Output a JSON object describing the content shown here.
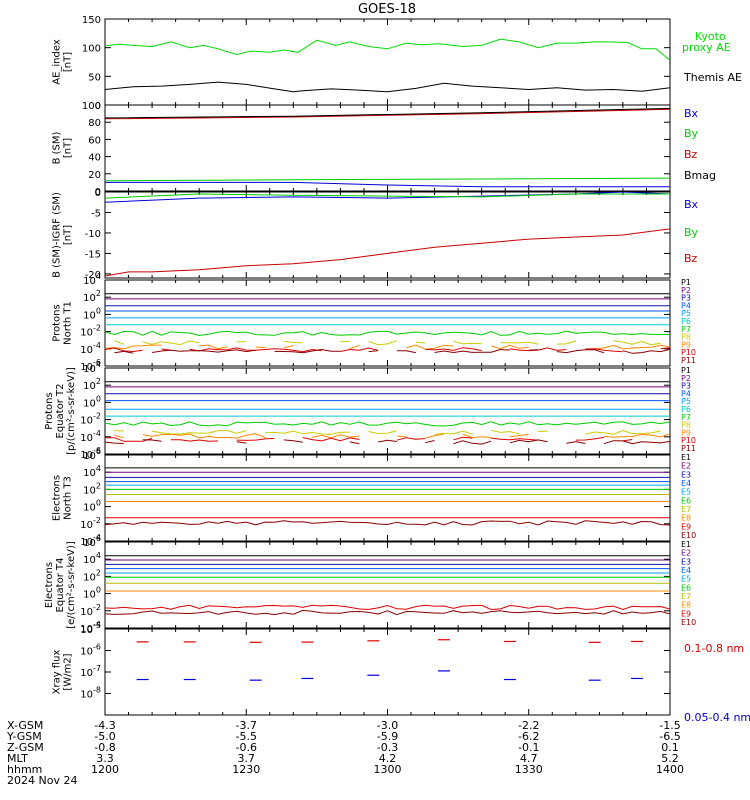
{
  "chart_data": {
    "type": "line",
    "title": "GOES-18",
    "time_axis": {
      "rows": [
        {
          "label": "X-GSM",
          "values": [
            "-4.3",
            "-3.7",
            "-3.0",
            "-2.2",
            "-1.5"
          ]
        },
        {
          "label": "Y-GSM",
          "values": [
            "-5.0",
            "-5.5",
            "-5.9",
            "-6.2",
            "-6.5"
          ]
        },
        {
          "label": "Z-GSM",
          "values": [
            "-0.8",
            "-0.6",
            "-0.3",
            "-0.1",
            "0.1"
          ]
        },
        {
          "label": "MLT",
          "values": [
            "3.3",
            "3.7",
            "4.2",
            "4.7",
            "5.2"
          ]
        },
        {
          "label": "hhmm",
          "values": [
            "1200",
            "1230",
            "1300",
            "1330",
            "1400"
          ]
        }
      ],
      "date": "2024 Nov 24",
      "xlim": [
        1200,
        1400
      ]
    },
    "panels": [
      {
        "id": "ae",
        "ylabel": [
          "AE_index",
          "[nT]"
        ],
        "ylim": [
          0,
          150
        ],
        "yticks": [
          "0",
          "50",
          "100",
          "150"
        ],
        "scale": "linear",
        "series": [
          {
            "name": "Kyoto proxy AE",
            "label_lines": [
              "Kyoto",
              "proxy AE"
            ],
            "color": "#00dd00",
            "x": [
              0,
              3,
              6,
              10,
              14,
              18,
              21,
              24,
              28,
              31,
              35,
              38,
              41,
              45,
              49,
              52,
              56,
              60,
              64,
              67,
              71,
              76,
              80,
              84,
              88,
              92,
              96,
              100,
              104,
              107,
              111,
              114,
              117,
              120
            ],
            "y": [
              103,
              106,
              104,
              102,
              110,
              100,
              104,
              98,
              88,
              94,
              92,
              96,
              92,
              113,
              104,
              110,
              102,
              98,
              108,
              105,
              107,
              102,
              104,
              115,
              110,
              100,
              108,
              108,
              110,
              110,
              109,
              98,
              98,
              78
            ]
          },
          {
            "name": "Themis AE",
            "color": "#000000",
            "x": [
              0,
              6,
              12,
              18,
              24,
              30,
              36,
              40,
              42,
              48,
              54,
              60,
              66,
              72,
              78,
              84,
              90,
              96,
              102,
              108,
              114,
              120
            ],
            "y": [
              27,
              32,
              33,
              36,
              40,
              36,
              28,
              23,
              25,
              28,
              26,
              23,
              29,
              38,
              33,
              30,
              27,
              30,
              26,
              27,
              24,
              30
            ]
          }
        ]
      },
      {
        "id": "b_sm",
        "ylabel": [
          "B (SM)",
          "[nT]"
        ],
        "ylim": [
          0,
          100
        ],
        "yticks": [
          "0",
          "20",
          "40",
          "60",
          "80",
          "100"
        ],
        "scale": "linear",
        "series": [
          {
            "name": "Bx",
            "color": "#0000dd",
            "x": [
              0,
              40,
              60,
              80,
              120
            ],
            "y": [
              10,
              10,
              7,
              5,
              5
            ]
          },
          {
            "name": "By",
            "color": "#00cc00",
            "x": [
              0,
              40,
              80,
              120
            ],
            "y": [
              12,
              13,
              14,
              15
            ]
          },
          {
            "name": "Bz",
            "color": "#cc0000",
            "x": [
              0,
              40,
              80,
              120
            ],
            "y": [
              84,
              86,
              90,
              95
            ]
          },
          {
            "name": "Bmag",
            "color": "#000000",
            "x": [
              0,
              40,
              80,
              120
            ],
            "y": [
              85,
              87,
              91,
              96
            ]
          }
        ]
      },
      {
        "id": "b_igrf",
        "ylabel": [
          "B (SM)-IGRF (SM)",
          "[nT]"
        ],
        "ylim": [
          -21,
          0
        ],
        "yticks": [
          "-20",
          "-15",
          "-10",
          "-5",
          "0"
        ],
        "scale": "linear",
        "series": [
          {
            "name": "Bx",
            "color": "#0000dd",
            "x": [
              0,
              20,
              40,
              60,
              80,
              100,
              110,
              120
            ],
            "y": [
              -2.5,
              -1.5,
              -1.2,
              -1.5,
              -1.0,
              -0.5,
              0,
              -0.5
            ]
          },
          {
            "name": "By",
            "color": "#00cc00",
            "x": [
              0,
              20,
              40,
              60,
              80,
              100,
              120
            ],
            "y": [
              -1.5,
              -0.5,
              -0.8,
              -1.0,
              -1.2,
              -0.5,
              -0.5
            ]
          },
          {
            "name": "Bz",
            "color": "#cc0000",
            "x": [
              0,
              5,
              10,
              20,
              30,
              40,
              50,
              60,
              70,
              80,
              90,
              100,
              110,
              120
            ],
            "y": [
              -20.5,
              -19.5,
              -19.5,
              -19.0,
              -18.0,
              -17.5,
              -16.5,
              -15.0,
              -13.5,
              -12.5,
              -11.5,
              -11.0,
              -10.5,
              -9.0
            ]
          }
        ]
      },
      {
        "id": "protons_t1",
        "ylabel": [
          "Protons",
          "North T1"
        ],
        "ylim_exp": [
          -6,
          4
        ],
        "yticks": [
          "10^-6",
          "10^-4",
          "10^-2",
          "10^0",
          "10^2",
          "10^4"
        ],
        "scale": "log",
        "series": [
          {
            "name": "P1",
            "color": "#000000",
            "flat": 2.4
          },
          {
            "name": "P2",
            "color": "#7a0077",
            "flat": 1.8
          },
          {
            "name": "P3",
            "color": "#1010aa",
            "flat": 1.0
          },
          {
            "name": "P4",
            "color": "#0055ff",
            "flat": 0.4
          },
          {
            "name": "P5",
            "color": "#00a0ff",
            "flat": -0.4
          },
          {
            "name": "P6",
            "color": "#00cccc",
            "flat": -1.2
          },
          {
            "name": "P7",
            "color": "#00cc00",
            "wavy": -2.2
          },
          {
            "name": "P8",
            "color": "#cccc00",
            "wavy": -3.3
          },
          {
            "name": "P9",
            "color": "#ff8800",
            "wavy": -3.8
          },
          {
            "name": "P10",
            "color": "#dd0000",
            "wavy": -4.1
          },
          {
            "name": "P11",
            "color": "#880000",
            "wavy": -4.3
          }
        ]
      },
      {
        "id": "protons_t2",
        "ylabel": [
          "Protons",
          "Equator T2",
          "[p/(cm²-s-sr-keV)]"
        ],
        "ylim_exp": [
          -6,
          4
        ],
        "yticks": [
          "10^-6",
          "10^-4",
          "10^-2",
          "10^0",
          "10^2",
          "10^4"
        ],
        "scale": "log",
        "series": [
          {
            "name": "P1",
            "color": "#000000",
            "flat": 2.4
          },
          {
            "name": "P2",
            "color": "#7a0077",
            "flat": 1.8
          },
          {
            "name": "P3",
            "color": "#1010aa",
            "flat": 1.0
          },
          {
            "name": "P4",
            "color": "#0055ff",
            "flat": 0.2
          },
          {
            "name": "P5",
            "color": "#00a0ff",
            "flat": -0.8
          },
          {
            "name": "P6",
            "color": "#00cccc",
            "flat": -1.6
          },
          {
            "name": "P7",
            "color": "#00cc00",
            "wavy": -2.5
          },
          {
            "name": "P8",
            "color": "#cccc00",
            "wavy": -3.5
          },
          {
            "name": "P9",
            "color": "#ff8800",
            "wavy": -3.9
          },
          {
            "name": "P10",
            "color": "#dd0000",
            "wavy": -4.3
          },
          {
            "name": "P11",
            "color": "#880000",
            "wavy": -4.6
          }
        ]
      },
      {
        "id": "electrons_t3",
        "ylabel": [
          "Electrons",
          "North T3"
        ],
        "ylim_exp": [
          -4,
          6
        ],
        "yticks": [
          "10^-4",
          "10^-2",
          "10^0",
          "10^2",
          "10^4",
          "10^6"
        ],
        "scale": "log",
        "series": [
          {
            "name": "E1",
            "color": "#000000",
            "flat": 4.5
          },
          {
            "name": "E2",
            "color": "#7a0077",
            "flat": 4.0
          },
          {
            "name": "E3",
            "color": "#1010aa",
            "flat": 3.4
          },
          {
            "name": "E4",
            "color": "#0055ff",
            "flat": 2.9
          },
          {
            "name": "E5",
            "color": "#00a0ff",
            "flat": 2.5
          },
          {
            "name": "E6",
            "color": "#00cc00",
            "flat": 2.0
          },
          {
            "name": "E7",
            "color": "#bbbb00",
            "flat": 1.4
          },
          {
            "name": "E8",
            "color": "#ff8800",
            "flat": 0.6
          },
          {
            "name": "E9",
            "color": "#dd0000",
            "flat": -1.3
          },
          {
            "name": "E10",
            "color": "#880000",
            "wavy": -1.9
          }
        ]
      },
      {
        "id": "electrons_t4",
        "ylabel": [
          "Electrons",
          "Equator T4",
          "[e/(cm²-s-sr-keV)]"
        ],
        "ylim_exp": [
          -4,
          6
        ],
        "yticks": [
          "10^-4",
          "10^-2",
          "10^0",
          "10^2",
          "10^4",
          "10^6"
        ],
        "scale": "log",
        "series": [
          {
            "name": "E1",
            "color": "#000000",
            "flat": 4.4
          },
          {
            "name": "E2",
            "color": "#7a0077",
            "flat": 3.9
          },
          {
            "name": "E3",
            "color": "#1010aa",
            "flat": 3.4
          },
          {
            "name": "E4",
            "color": "#0055ff",
            "flat": 2.9
          },
          {
            "name": "E5",
            "color": "#00a0ff",
            "flat": 2.4
          },
          {
            "name": "E6",
            "color": "#00cc00",
            "flat": 1.9
          },
          {
            "name": "E7",
            "color": "#bbbb00",
            "flat": 1.2
          },
          {
            "name": "E8",
            "color": "#ff8800",
            "flat": 0.3
          },
          {
            "name": "E9",
            "color": "#dd0000",
            "wavy": -1.6
          },
          {
            "name": "E10",
            "color": "#880000",
            "wavy": -2.2
          }
        ]
      },
      {
        "id": "xray",
        "ylabel": [
          "Xray flux",
          "[W/m2]"
        ],
        "ylim_exp": [
          -9,
          -5
        ],
        "yticks": [
          "10^-8",
          "10^-7",
          "10^-6",
          "10^-5"
        ],
        "scale": "log",
        "series": [
          {
            "name": "0.1-0.8 nm",
            "color": "#dd0000",
            "x": [
              8,
              18,
              32,
              43,
              57,
              72,
              86,
              104,
              113
            ],
            "y": [
              -5.6,
              -5.6,
              -5.62,
              -5.61,
              -5.55,
              -5.5,
              -5.58,
              -5.62,
              -5.58
            ]
          },
          {
            "name": "0.05-0.4 nm",
            "color": "#0000dd",
            "x": [
              8,
              18,
              32,
              43,
              57,
              72,
              86,
              104,
              113
            ],
            "y": [
              -7.35,
              -7.35,
              -7.38,
              -7.3,
              -7.15,
              -6.95,
              -7.35,
              -7.38,
              -7.3
            ]
          }
        ]
      }
    ]
  }
}
